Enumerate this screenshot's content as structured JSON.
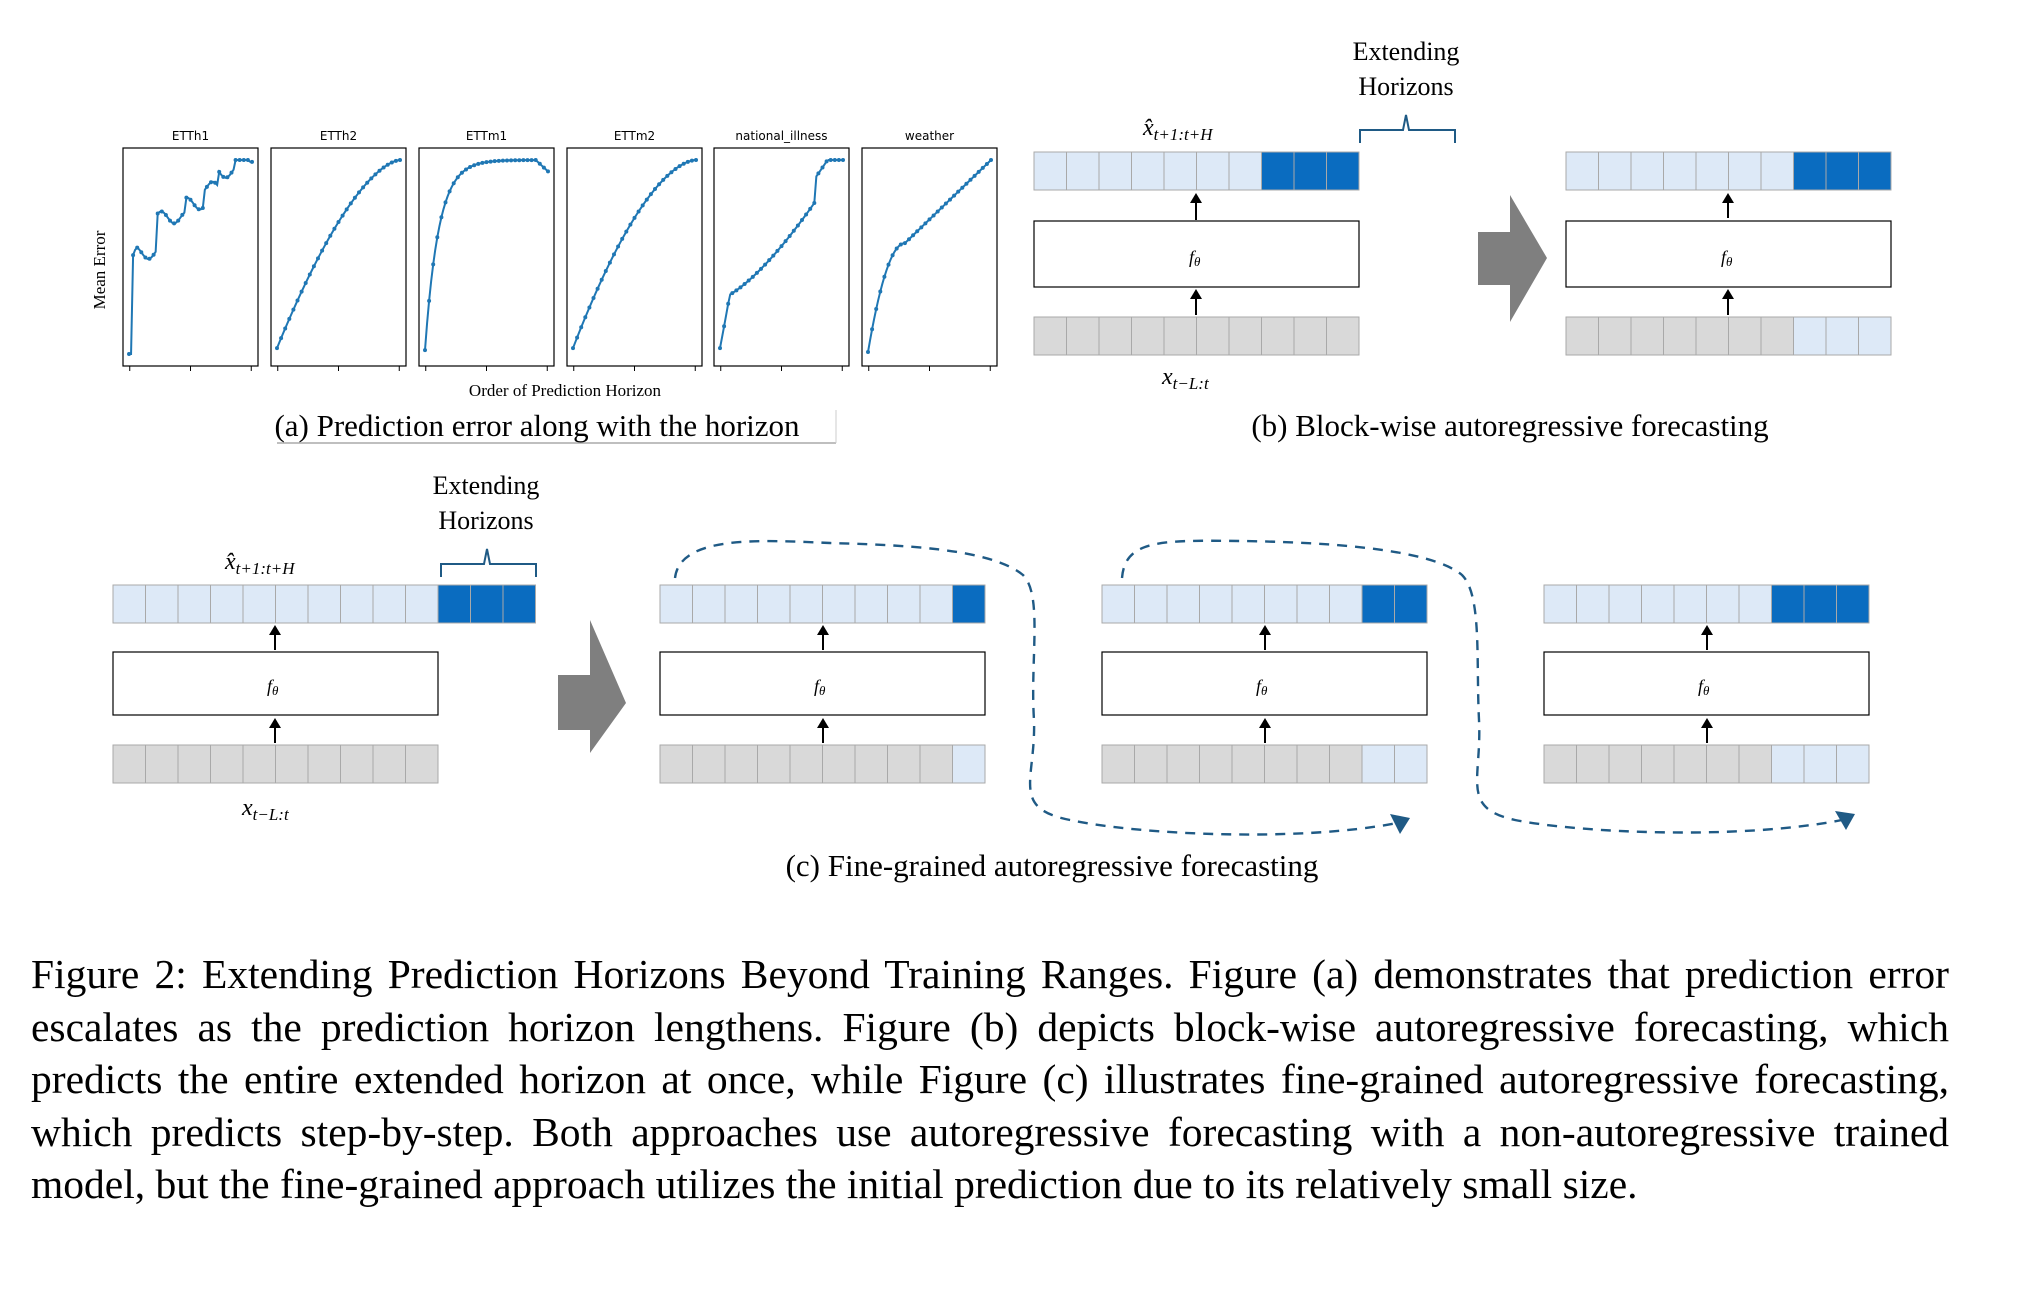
{
  "panel_a": {
    "y_label": "Mean Error",
    "x_label": "Order of Prediction Horizon",
    "caption": "(a) Prediction error along with the horizon",
    "series_color": "#1f77b4",
    "subplots": [
      {
        "title": "ETTh1"
      },
      {
        "title": "ETTh2"
      },
      {
        "title": "ETTm1"
      },
      {
        "title": "ETTm2"
      },
      {
        "title": "national_illness"
      },
      {
        "title": "weather"
      }
    ]
  },
  "panel_b": {
    "extending_line1": "Extending",
    "extending_line2": "Horizons",
    "output_label": "x̂",
    "output_sub": "t+1:t+H",
    "model_label": "f",
    "model_sub": "θ",
    "input_label": "x",
    "input_sub": "t−L:t",
    "caption": "(b) Block-wise autoregressive forecasting"
  },
  "panel_c": {
    "extending_line1": "Extending",
    "extending_line2": "Horizons",
    "output_label": "x̂",
    "output_sub": "t+1:t+H",
    "model_label": "f",
    "model_sub": "θ",
    "input_label": "x",
    "input_sub": "t−L:t",
    "caption": "(c) Fine-grained autoregressive forecasting"
  },
  "colors": {
    "prediction_light": "#dde9f7",
    "extension_dark": "#0a6cc0",
    "input_gray": "#d9d9d9",
    "arrow_gray": "#7f7f7f",
    "dashed_blue": "#1f5a85"
  },
  "caption": "Figure 2: Extending Prediction Horizons Beyond Training Ranges. Figure (a) demonstrates that prediction error escalates as the prediction horizon lengthens. Figure (b) depicts block-wise autoregressive forecasting, which predicts the entire extended horizon at once, while Figure (c) illustrates fine-grained autoregressive forecasting, which predicts step-by-step. Both approaches use autoregressive forecasting with a non-autoregressive trained model, but the fine-grained approach utilizes the initial prediction due to its relatively small size."
}
